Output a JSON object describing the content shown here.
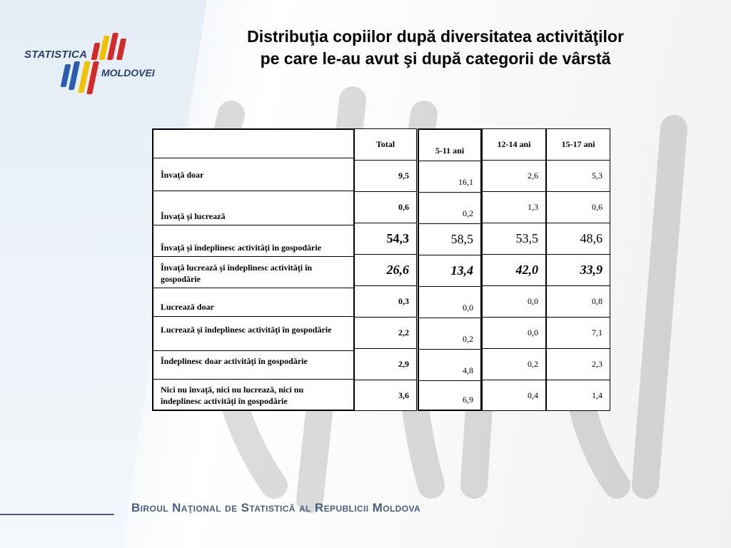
{
  "logo": {
    "line1": "STATISTICA",
    "line2": "MOLDOVEI",
    "colors": {
      "blue": "#2a5db0",
      "yellow": "#f2c200",
      "red": "#d42a2a",
      "text": "#2b3f6b"
    }
  },
  "title": "Distribuţia copiilor după diversitatea activităţilor pe care le-au avut şi după categorii de vârstă",
  "table": {
    "header_blank": "",
    "columns": [
      "Total",
      "5-11 ani",
      "12-14 ani",
      "15-17 ani"
    ],
    "rows": [
      {
        "label": "Învaţă doar",
        "values": [
          "9,5",
          "16,1",
          "2,6",
          "5,3"
        ]
      },
      {
        "label": "Învaţă şi lucrează",
        "values": [
          "0,6",
          "0,2",
          "1,3",
          "0,6"
        ]
      },
      {
        "label": "Învaţă şi îndeplinesc activităţi în gospodărie",
        "values": [
          "54,3",
          "58,5",
          "53,5",
          "48,6"
        ]
      },
      {
        "label": "Învaţă lucrează şi îndeplinesc activităţi în gospodărie",
        "values": [
          "26,6",
          "13,4",
          "42,0",
          "33,9"
        ]
      },
      {
        "label": "Lucrează doar",
        "values": [
          "0,3",
          "0,0",
          "0,0",
          "0,8"
        ]
      },
      {
        "label": "Lucrează şi îndeplinesc activităţi în gospodărie",
        "values": [
          "2,2",
          "0,2",
          "0,0",
          "7,1"
        ]
      },
      {
        "label": "Îndeplinesc doar activităţi în gospodărie",
        "values": [
          "2,9",
          "4,8",
          "0,2",
          "2,3"
        ]
      },
      {
        "label": "Nici nu învaţă, nici nu lucrează, nici nu îndeplinesc  activităţi în gospodărie",
        "values": [
          "3,6",
          "6,9",
          "0,4",
          "1,4"
        ]
      }
    ]
  },
  "footer": "Biroul Naţional de Statistică al Republicii Moldova"
}
